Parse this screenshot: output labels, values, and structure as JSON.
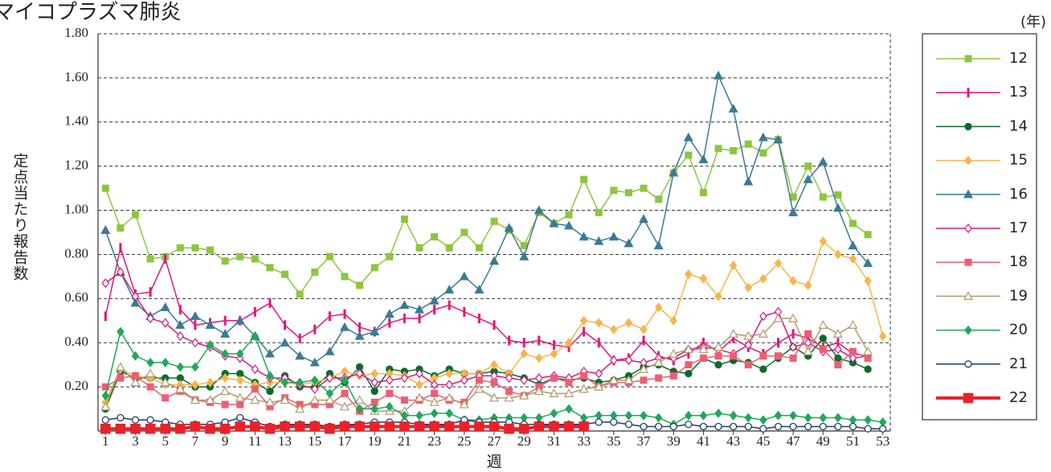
{
  "chart_data": {
    "type": "line",
    "title": "マイコプラズマ肺炎",
    "y_label": "定点当たり報告数",
    "x_label": "週",
    "legend_title": "(年)",
    "x": [
      1,
      2,
      3,
      4,
      5,
      6,
      7,
      8,
      9,
      10,
      11,
      12,
      13,
      14,
      15,
      16,
      17,
      18,
      19,
      20,
      21,
      22,
      23,
      24,
      25,
      26,
      27,
      28,
      29,
      30,
      31,
      32,
      33,
      34,
      35,
      36,
      37,
      38,
      39,
      40,
      41,
      42,
      43,
      44,
      45,
      46,
      47,
      48,
      49,
      50,
      51,
      52,
      53
    ],
    "xlim": [
      0.5,
      53.5
    ],
    "xticks": [
      1,
      3,
      5,
      7,
      9,
      11,
      13,
      15,
      17,
      19,
      21,
      23,
      25,
      27,
      29,
      31,
      33,
      35,
      37,
      39,
      41,
      43,
      45,
      47,
      49,
      51,
      53
    ],
    "ylim": [
      0,
      1.8
    ],
    "yticks": [
      {
        "value": 0.2,
        "label": "0.20"
      },
      {
        "value": 0.4,
        "label": "0.40"
      },
      {
        "value": 0.6,
        "label": "0.60"
      },
      {
        "value": 0.8,
        "label": "0.80"
      },
      {
        "value": 1.0,
        "label": "1.00"
      },
      {
        "value": 1.2,
        "label": "1.20"
      },
      {
        "value": 1.4,
        "label": "1.40"
      },
      {
        "value": 1.6,
        "label": "1.60"
      },
      {
        "value": 1.8,
        "label": "1.80"
      }
    ],
    "grid": true,
    "legend": "right",
    "series": [
      {
        "name": "12",
        "color": "#8cc63e",
        "marker": "square",
        "values": [
          1.1,
          0.92,
          0.98,
          0.78,
          0.79,
          0.83,
          0.83,
          0.82,
          0.77,
          0.79,
          0.78,
          0.74,
          0.71,
          0.62,
          0.72,
          0.79,
          0.7,
          0.66,
          0.74,
          0.79,
          0.96,
          0.83,
          0.88,
          0.83,
          0.9,
          0.83,
          0.95,
          0.91,
          0.84,
          0.99,
          0.94,
          0.98,
          1.14,
          0.99,
          1.09,
          1.08,
          1.1,
          1.05,
          1.17,
          1.25,
          1.08,
          1.28,
          1.27,
          1.3,
          1.26,
          1.32,
          1.06,
          1.2,
          1.06,
          1.07,
          0.94,
          0.89,
          null
        ]
      },
      {
        "name": "13",
        "color": "#e4157a",
        "marker": "bar",
        "values": [
          0.52,
          0.83,
          0.62,
          0.63,
          0.78,
          0.55,
          0.48,
          0.49,
          0.5,
          0.5,
          0.54,
          0.58,
          0.48,
          0.42,
          0.46,
          0.52,
          0.53,
          0.47,
          0.45,
          0.49,
          0.51,
          0.51,
          0.55,
          0.57,
          0.54,
          0.51,
          0.48,
          0.41,
          0.4,
          0.41,
          0.39,
          0.38,
          0.45,
          0.4,
          0.32,
          0.33,
          0.41,
          0.34,
          0.32,
          0.35,
          0.4,
          0.36,
          0.42,
          0.38,
          0.35,
          0.4,
          0.44,
          0.42,
          0.38,
          0.4,
          0.35,
          0.34,
          null
        ]
      },
      {
        "name": "14",
        "color": "#0b6b2e",
        "marker": "circle",
        "values": [
          0.1,
          0.27,
          0.24,
          0.24,
          0.24,
          0.24,
          0.2,
          0.2,
          0.26,
          0.26,
          0.22,
          0.18,
          0.25,
          0.2,
          0.2,
          0.26,
          0.22,
          0.29,
          0.18,
          0.28,
          0.27,
          0.28,
          0.25,
          0.28,
          0.26,
          0.26,
          0.27,
          0.26,
          0.24,
          0.21,
          0.24,
          0.23,
          0.24,
          0.22,
          0.23,
          0.25,
          0.29,
          0.3,
          0.27,
          0.26,
          0.33,
          0.3,
          0.32,
          0.31,
          0.28,
          0.33,
          0.38,
          0.34,
          0.42,
          0.33,
          0.31,
          0.28,
          null
        ]
      },
      {
        "name": "15",
        "color": "#f9b44a",
        "marker": "diamond",
        "values": [
          0.13,
          0.28,
          0.25,
          0.24,
          0.21,
          0.21,
          0.21,
          0.22,
          0.24,
          0.23,
          0.21,
          0.22,
          0.22,
          0.21,
          0.22,
          0.24,
          0.27,
          0.25,
          0.26,
          0.26,
          0.25,
          0.21,
          0.24,
          0.26,
          0.26,
          0.26,
          0.3,
          0.26,
          0.35,
          0.33,
          0.35,
          0.4,
          0.5,
          0.49,
          0.46,
          0.49,
          0.46,
          0.56,
          0.5,
          0.71,
          0.69,
          0.61,
          0.75,
          0.65,
          0.69,
          0.76,
          0.68,
          0.66,
          0.86,
          0.8,
          0.78,
          0.68,
          0.43
        ]
      },
      {
        "name": "16",
        "color": "#3a7a94",
        "marker": "triangle",
        "values": [
          0.91,
          0.72,
          0.58,
          0.52,
          0.56,
          0.48,
          0.52,
          0.48,
          0.44,
          0.5,
          0.43,
          0.35,
          0.4,
          0.34,
          0.31,
          0.36,
          0.47,
          0.43,
          0.45,
          0.53,
          0.57,
          0.55,
          0.59,
          0.64,
          0.7,
          0.64,
          0.77,
          0.92,
          0.79,
          1.0,
          0.94,
          0.93,
          0.88,
          0.86,
          0.88,
          0.85,
          0.96,
          0.84,
          1.17,
          1.33,
          1.23,
          1.61,
          1.46,
          1.13,
          1.33,
          1.32,
          0.99,
          1.14,
          1.22,
          1.01,
          0.84,
          0.76,
          null
        ]
      },
      {
        "name": "17",
        "color": "#d6187e",
        "marker": "diamond-open",
        "values": [
          0.67,
          0.72,
          0.61,
          0.51,
          0.49,
          0.43,
          0.4,
          0.38,
          0.34,
          0.33,
          0.28,
          0.24,
          0.24,
          0.21,
          0.19,
          0.24,
          0.24,
          0.26,
          0.22,
          0.23,
          0.24,
          0.26,
          0.21,
          0.21,
          0.23,
          0.25,
          0.25,
          0.24,
          0.23,
          0.24,
          0.25,
          0.24,
          0.27,
          0.26,
          0.32,
          0.32,
          0.31,
          0.33,
          0.33,
          0.37,
          0.38,
          0.37,
          0.35,
          0.39,
          0.52,
          0.54,
          0.38,
          0.4,
          0.36,
          0.37,
          0.33,
          0.34,
          null
        ]
      },
      {
        "name": "18",
        "color": "#ef5d73",
        "marker": "square",
        "values": [
          0.2,
          0.24,
          0.25,
          0.2,
          0.15,
          0.18,
          0.14,
          0.13,
          0.12,
          0.12,
          0.19,
          0.11,
          0.15,
          0.12,
          0.12,
          0.12,
          0.17,
          0.09,
          0.13,
          0.17,
          0.14,
          0.14,
          0.17,
          0.14,
          0.13,
          0.23,
          0.22,
          0.18,
          0.16,
          0.2,
          0.24,
          0.22,
          0.25,
          0.2,
          0.22,
          0.22,
          0.23,
          0.24,
          0.25,
          0.3,
          0.33,
          0.34,
          0.34,
          0.3,
          0.34,
          0.34,
          0.33,
          0.44,
          0.37,
          0.3,
          0.36,
          0.33,
          null
        ]
      },
      {
        "name": "19",
        "color": "#b09a6c",
        "marker": "triangle-open",
        "values": [
          0.11,
          0.29,
          0.22,
          0.26,
          0.22,
          0.19,
          0.14,
          0.14,
          0.18,
          0.15,
          0.14,
          0.13,
          0.14,
          0.1,
          0.14,
          0.14,
          0.11,
          0.14,
          0.09,
          0.09,
          0.09,
          0.15,
          0.13,
          0.15,
          0.12,
          0.19,
          0.15,
          0.15,
          0.16,
          0.18,
          0.17,
          0.17,
          0.19,
          0.2,
          0.23,
          0.23,
          0.28,
          0.31,
          0.35,
          0.37,
          0.37,
          0.38,
          0.44,
          0.43,
          0.44,
          0.51,
          0.51,
          0.36,
          0.48,
          0.44,
          0.48,
          0.36,
          null
        ]
      },
      {
        "name": "20",
        "color": "#1fa85a",
        "marker": "diamond",
        "values": [
          0.16,
          0.45,
          0.34,
          0.31,
          0.31,
          0.29,
          0.29,
          0.39,
          0.35,
          0.35,
          0.43,
          0.25,
          0.22,
          0.22,
          0.23,
          0.17,
          0.23,
          0.1,
          0.1,
          0.11,
          0.07,
          0.07,
          0.08,
          0.08,
          0.05,
          0.05,
          0.06,
          0.06,
          0.06,
          0.06,
          0.08,
          0.1,
          0.06,
          0.07,
          0.07,
          0.07,
          0.07,
          0.06,
          0.03,
          0.07,
          0.07,
          0.08,
          0.07,
          0.06,
          0.05,
          0.07,
          0.07,
          0.06,
          0.06,
          0.06,
          0.05,
          0.05,
          0.04
        ]
      },
      {
        "name": "21",
        "color": "#1d3e6b",
        "marker": "circle-open",
        "values": [
          0.05,
          0.06,
          0.05,
          0.05,
          0.04,
          0.03,
          0.03,
          0.03,
          0.04,
          0.06,
          0.04,
          0.02,
          0.03,
          0.03,
          0.03,
          0.02,
          0.03,
          0.03,
          0.04,
          0.04,
          0.04,
          0.03,
          0.03,
          0.03,
          0.05,
          0.04,
          0.04,
          0.04,
          0.03,
          0.03,
          0.03,
          0.03,
          0.03,
          0.04,
          0.04,
          0.03,
          0.02,
          0.02,
          0.02,
          0.03,
          0.02,
          0.02,
          0.02,
          0.02,
          0.01,
          0.02,
          0.02,
          0.02,
          0.02,
          0.02,
          0.02,
          0.01,
          0.01
        ]
      },
      {
        "name": "22",
        "color": "#e8222b",
        "marker": "square",
        "width": 4,
        "values": [
          0.01,
          0.01,
          0.01,
          0.01,
          0.01,
          0.01,
          0.02,
          0.01,
          0.01,
          0.02,
          0.02,
          0.01,
          0.02,
          0.02,
          0.02,
          0.01,
          0.02,
          0.02,
          0.02,
          0.02,
          0.02,
          0.02,
          0.02,
          0.02,
          0.02,
          0.02,
          0.02,
          0.01,
          0.01,
          0.02,
          0.02,
          0.02,
          0.02,
          null,
          null,
          null,
          null,
          null,
          null,
          null,
          null,
          null,
          null,
          null,
          null,
          null,
          null,
          null,
          null,
          null,
          null,
          null,
          null
        ]
      }
    ]
  }
}
